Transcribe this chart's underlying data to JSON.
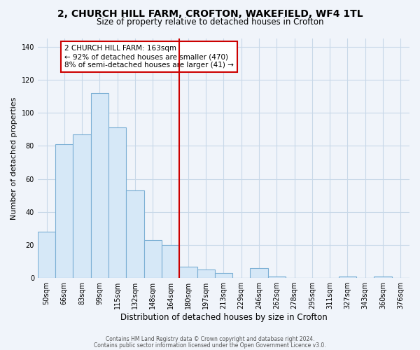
{
  "title_line1": "2, CHURCH HILL FARM, CROFTON, WAKEFIELD, WF4 1TL",
  "title_line2": "Size of property relative to detached houses in Crofton",
  "xlabel": "Distribution of detached houses by size in Crofton",
  "ylabel": "Number of detached properties",
  "bar_labels": [
    "50sqm",
    "66sqm",
    "83sqm",
    "99sqm",
    "115sqm",
    "132sqm",
    "148sqm",
    "164sqm",
    "180sqm",
    "197sqm",
    "213sqm",
    "229sqm",
    "246sqm",
    "262sqm",
    "278sqm",
    "295sqm",
    "311sqm",
    "327sqm",
    "343sqm",
    "360sqm",
    "376sqm"
  ],
  "bar_values": [
    28,
    81,
    87,
    112,
    91,
    53,
    23,
    20,
    7,
    5,
    3,
    0,
    6,
    1,
    0,
    0,
    0,
    1,
    0,
    1,
    0
  ],
  "bar_color": "#d6e8f7",
  "bar_edge_color": "#7bafd4",
  "vline_color": "#cc0000",
  "vline_x": 7.5,
  "annotation_text": "2 CHURCH HILL FARM: 163sqm\n← 92% of detached houses are smaller (470)\n8% of semi-detached houses are larger (41) →",
  "annotation_box_color": "white",
  "annotation_box_edge_color": "#cc0000",
  "ylim": [
    0,
    145
  ],
  "yticks": [
    0,
    20,
    40,
    60,
    80,
    100,
    120,
    140
  ],
  "grid_color": "#c8d8e8",
  "footer_line1": "Contains HM Land Registry data © Crown copyright and database right 2024.",
  "footer_line2": "Contains public sector information licensed under the Open Government Licence v3.0.",
  "bg_color": "#f0f4fa"
}
